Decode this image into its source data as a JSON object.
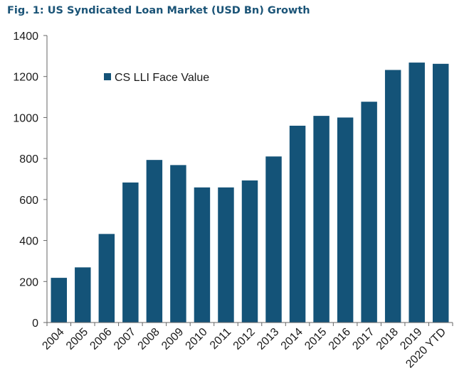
{
  "figure": {
    "title": "Fig. 1: US Syndicated Loan Market (USD Bn) Growth"
  },
  "colors": {
    "bar": "#145378",
    "title": "#1b5477",
    "axis": "#666666"
  },
  "chart_data": {
    "type": "bar",
    "title": "Fig. 1: US Syndicated Loan Market (USD Bn) Growth",
    "xlabel": "",
    "ylabel": "",
    "ylim": [
      0,
      1400
    ],
    "yticks": [
      0,
      200,
      400,
      600,
      800,
      1000,
      1200,
      1400
    ],
    "grid": false,
    "legend_position": "top-left",
    "categories": [
      "2004",
      "2005",
      "2006",
      "2007",
      "2008",
      "2009",
      "2010",
      "2011",
      "2012",
      "2013",
      "2014",
      "2015",
      "2016",
      "2017",
      "2018",
      "2019",
      "2020 YTD"
    ],
    "series": [
      {
        "name": "CS LLI Face Value",
        "values": [
          218,
          269,
          432,
          683,
          793,
          768,
          659,
          659,
          693,
          810,
          960,
          1008,
          1000,
          1077,
          1232,
          1268,
          1262
        ]
      }
    ]
  }
}
